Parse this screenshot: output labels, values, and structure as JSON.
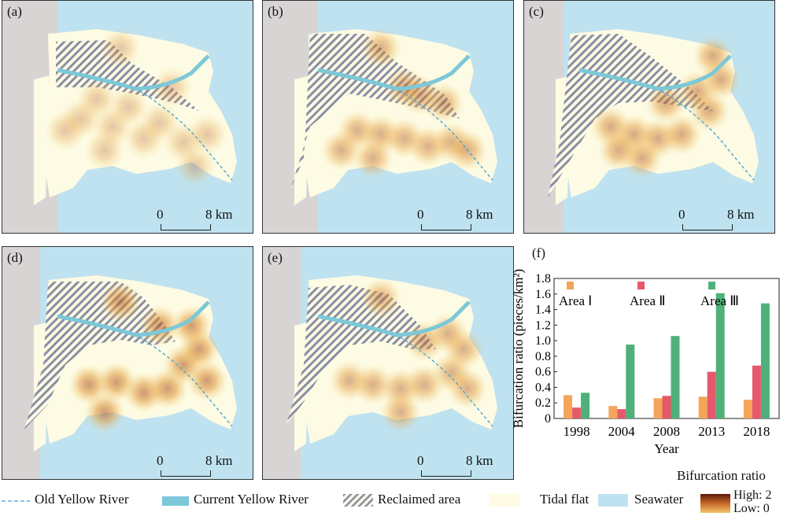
{
  "panels": [
    {
      "id": "a",
      "label": "(a)",
      "scale_zero": "0",
      "scale_end": "8 km"
    },
    {
      "id": "b",
      "label": "(b)",
      "scale_zero": "0",
      "scale_end": "8 km"
    },
    {
      "id": "c",
      "label": "(c)",
      "scale_zero": "0",
      "scale_end": "8 km"
    },
    {
      "id": "d",
      "label": "(d)",
      "scale_zero": "0",
      "scale_end": "8 km"
    },
    {
      "id": "e",
      "label": "(e)",
      "scale_zero": "0",
      "scale_end": "8 km"
    }
  ],
  "legend": {
    "old_river": "Old Yellow River",
    "current_river": "Current Yellow River",
    "reclaimed": "Reclaimed area",
    "tidal": "Tidal flat",
    "seawater": "Seawater",
    "ratio_title": "Bifurcation ratio",
    "high": "High: 2",
    "low": "Low: 0"
  },
  "colors": {
    "seawater": "#bfe2f0",
    "land": "#d9d4d4",
    "tidal": "#fdfbe3",
    "river": "#7cc8d8",
    "area1": "#f4a55a",
    "area2": "#e5596b",
    "area3": "#4fb07a"
  },
  "chart_data": {
    "type": "bar",
    "panel_label": "(f)",
    "categories": [
      "1998",
      "2004",
      "2008",
      "2013",
      "2018"
    ],
    "series": [
      {
        "name": "Area Ⅰ",
        "values": [
          0.3,
          0.16,
          0.26,
          0.28,
          0.24
        ]
      },
      {
        "name": "Area Ⅱ",
        "values": [
          0.14,
          0.12,
          0.29,
          0.6,
          0.68
        ]
      },
      {
        "name": "Area Ⅲ",
        "values": [
          0.33,
          0.95,
          1.06,
          1.61,
          1.48
        ]
      }
    ],
    "xlabel": "Year",
    "ylabel": "Bifurcation ratio (pieces/km²)",
    "ylim": [
      0,
      1.8
    ],
    "yticks": [
      "0",
      "0.2",
      "0.4",
      "0.6",
      "0.8",
      "1.0",
      "1.2",
      "1.4",
      "1.6",
      "1.8"
    ],
    "legend_placement": "top"
  }
}
